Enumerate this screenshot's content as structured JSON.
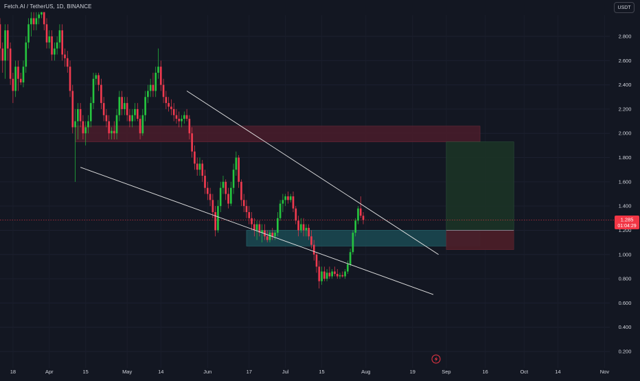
{
  "header": {
    "symbol_title": "Fetch.AI / TetherUS, 1D, BINANCE",
    "currency": "USDT"
  },
  "price_label": {
    "price": "1.285",
    "countdown": "01:04:29"
  },
  "colors": {
    "background": "#131722",
    "up": "#26c53f",
    "down": "#ef3a4f",
    "axis_text": "#d1d4dc",
    "trendline": "#e6e6e6",
    "resistance_zone": "#4a1c2a",
    "support_zone": "#1b4a52",
    "profit_zone": "#1c3326",
    "stop_zone": "#4a1e28",
    "price_line": "#f23645"
  },
  "chart_data": {
    "type": "candlestick",
    "title": "Fetch.AI / TetherUS, 1D, BINANCE",
    "y_axis": {
      "ylim": [
        0.08,
        3.0
      ],
      "ticks": [
        "2.800",
        "2.600",
        "2.400",
        "2.200",
        "2.000",
        "1.800",
        "1.600",
        "1.400",
        "1.200",
        "1.000",
        "0.800",
        "0.600",
        "0.400",
        "0.200"
      ],
      "tick_values": [
        2.8,
        2.6,
        2.4,
        2.2,
        2.0,
        1.8,
        1.6,
        1.4,
        1.2,
        1.0,
        0.8,
        0.6,
        0.4,
        0.2
      ]
    },
    "x_axis": {
      "start_date": "2024-03-13",
      "end_date": "2024-11-03",
      "ticks": [
        {
          "label": "18",
          "date": "2024-03-18"
        },
        {
          "label": "Apr",
          "date": "2024-04-01"
        },
        {
          "label": "15",
          "date": "2024-04-15"
        },
        {
          "label": "May",
          "date": "2024-05-01"
        },
        {
          "label": "14",
          "date": "2024-05-14"
        },
        {
          "label": "Jun",
          "date": "2024-06-01"
        },
        {
          "label": "17",
          "date": "2024-06-17"
        },
        {
          "label": "Jul",
          "date": "2024-07-01"
        },
        {
          "label": "15",
          "date": "2024-07-15"
        },
        {
          "label": "Aug",
          "date": "2024-08-01"
        },
        {
          "label": "19",
          "date": "2024-08-19"
        },
        {
          "label": "Sep",
          "date": "2024-09-01"
        },
        {
          "label": "16",
          "date": "2024-09-16"
        },
        {
          "label": "Oct",
          "date": "2024-10-01"
        },
        {
          "label": "14",
          "date": "2024-10-14"
        },
        {
          "label": "Nov",
          "date": "2024-11-01"
        }
      ]
    },
    "candles_start_date": "2024-03-13",
    "candles": [
      [
        2.9,
        2.95,
        2.6,
        2.7
      ],
      [
        2.7,
        2.75,
        2.5,
        2.6
      ],
      [
        2.6,
        2.9,
        2.45,
        2.85
      ],
      [
        2.85,
        2.9,
        2.6,
        2.7
      ],
      [
        2.7,
        2.75,
        2.4,
        2.45
      ],
      [
        2.45,
        2.5,
        2.25,
        2.35
      ],
      [
        2.35,
        2.6,
        2.3,
        2.55
      ],
      [
        2.55,
        2.6,
        2.35,
        2.45
      ],
      [
        2.45,
        2.5,
        2.4,
        2.42
      ],
      [
        2.42,
        2.6,
        2.38,
        2.55
      ],
      [
        2.55,
        2.8,
        2.5,
        2.75
      ],
      [
        2.75,
        2.95,
        2.7,
        2.9
      ],
      [
        2.9,
        3.0,
        2.8,
        2.95
      ],
      [
        2.95,
        3.0,
        2.85,
        2.9
      ],
      [
        2.9,
        3.0,
        2.85,
        2.95
      ],
      [
        2.95,
        3.0,
        2.9,
        2.98
      ],
      [
        2.98,
        3.0,
        2.95,
        3.0
      ],
      [
        3.0,
        3.0,
        2.85,
        2.9
      ],
      [
        2.9,
        2.95,
        2.7,
        2.75
      ],
      [
        2.75,
        2.85,
        2.7,
        2.8
      ],
      [
        2.8,
        2.85,
        2.6,
        2.65
      ],
      [
        2.65,
        2.75,
        2.6,
        2.7
      ],
      [
        2.7,
        2.8,
        2.65,
        2.75
      ],
      [
        2.75,
        2.9,
        2.7,
        2.85
      ],
      [
        2.85,
        2.9,
        2.6,
        2.65
      ],
      [
        2.65,
        2.7,
        2.55,
        2.62
      ],
      [
        2.62,
        2.68,
        2.5,
        2.55
      ],
      [
        2.55,
        2.6,
        2.3,
        2.35
      ],
      [
        2.35,
        2.4,
        2.0,
        2.05
      ],
      [
        2.05,
        2.2,
        1.6,
        2.1
      ],
      [
        2.1,
        2.25,
        1.95,
        2.2
      ],
      [
        2.2,
        2.25,
        2.05,
        2.1
      ],
      [
        2.1,
        2.15,
        1.95,
        2.0
      ],
      [
        2.0,
        2.1,
        1.9,
        2.05
      ],
      [
        2.05,
        2.15,
        2.0,
        2.1
      ],
      [
        2.1,
        2.3,
        2.05,
        2.25
      ],
      [
        2.25,
        2.5,
        2.2,
        2.45
      ],
      [
        2.45,
        2.5,
        2.4,
        2.48
      ],
      [
        2.48,
        2.5,
        2.35,
        2.4
      ],
      [
        2.4,
        2.45,
        2.2,
        2.25
      ],
      [
        2.25,
        2.3,
        2.1,
        2.15
      ],
      [
        2.15,
        2.2,
        2.05,
        2.1
      ],
      [
        2.1,
        2.15,
        1.95,
        2.0
      ],
      [
        2.0,
        2.05,
        1.95,
        2.02
      ],
      [
        2.02,
        2.1,
        1.95,
        2.0
      ],
      [
        2.0,
        2.2,
        1.95,
        2.15
      ],
      [
        2.15,
        2.35,
        2.1,
        2.3
      ],
      [
        2.3,
        2.35,
        2.15,
        2.2
      ],
      [
        2.2,
        2.3,
        2.15,
        2.25
      ],
      [
        2.25,
        2.3,
        2.1,
        2.15
      ],
      [
        2.15,
        2.2,
        2.05,
        2.1
      ],
      [
        2.1,
        2.2,
        2.05,
        2.15
      ],
      [
        2.15,
        2.25,
        2.1,
        2.2
      ],
      [
        2.2,
        2.25,
        2.1,
        2.12
      ],
      [
        2.12,
        2.15,
        1.95,
        2.0
      ],
      [
        2.0,
        2.2,
        1.98,
        2.15
      ],
      [
        2.15,
        2.35,
        2.1,
        2.3
      ],
      [
        2.3,
        2.4,
        2.25,
        2.35
      ],
      [
        2.35,
        2.45,
        2.3,
        2.4
      ],
      [
        2.4,
        2.5,
        2.3,
        2.35
      ],
      [
        2.35,
        2.55,
        2.3,
        2.5
      ],
      [
        2.5,
        2.7,
        2.45,
        2.55
      ],
      [
        2.55,
        2.6,
        2.35,
        2.4
      ],
      [
        2.4,
        2.45,
        2.25,
        2.3
      ],
      [
        2.3,
        2.35,
        2.2,
        2.25
      ],
      [
        2.25,
        2.3,
        2.18,
        2.22
      ],
      [
        2.22,
        2.28,
        2.15,
        2.2
      ],
      [
        2.2,
        2.25,
        2.1,
        2.15
      ],
      [
        2.15,
        2.2,
        2.08,
        2.12
      ],
      [
        2.12,
        2.18,
        2.05,
        2.1
      ],
      [
        2.1,
        2.15,
        2.05,
        2.12
      ],
      [
        2.12,
        2.18,
        2.08,
        2.15
      ],
      [
        2.15,
        2.2,
        2.1,
        2.12
      ],
      [
        2.12,
        2.15,
        1.95,
        2.0
      ],
      [
        2.0,
        2.05,
        1.8,
        1.85
      ],
      [
        1.85,
        1.9,
        1.7,
        1.75
      ],
      [
        1.75,
        1.8,
        1.65,
        1.7
      ],
      [
        1.7,
        1.8,
        1.65,
        1.75
      ],
      [
        1.75,
        1.78,
        1.6,
        1.65
      ],
      [
        1.65,
        1.7,
        1.5,
        1.55
      ],
      [
        1.55,
        1.6,
        1.45,
        1.5
      ],
      [
        1.5,
        1.55,
        1.4,
        1.45
      ],
      [
        1.45,
        1.5,
        1.3,
        1.35
      ],
      [
        1.35,
        1.4,
        1.15,
        1.2
      ],
      [
        1.2,
        1.45,
        1.18,
        1.4
      ],
      [
        1.4,
        1.6,
        1.35,
        1.55
      ],
      [
        1.55,
        1.65,
        1.5,
        1.6
      ],
      [
        1.6,
        1.62,
        1.45,
        1.5
      ],
      [
        1.5,
        1.55,
        1.38,
        1.42
      ],
      [
        1.42,
        1.6,
        1.4,
        1.55
      ],
      [
        1.55,
        1.75,
        1.5,
        1.7
      ],
      [
        1.7,
        1.85,
        1.65,
        1.8
      ],
      [
        1.8,
        1.82,
        1.55,
        1.6
      ],
      [
        1.6,
        1.62,
        1.4,
        1.45
      ],
      [
        1.45,
        1.5,
        1.35,
        1.4
      ],
      [
        1.4,
        1.45,
        1.3,
        1.35
      ],
      [
        1.35,
        1.4,
        1.25,
        1.3
      ],
      [
        1.3,
        1.35,
        1.2,
        1.25
      ],
      [
        1.25,
        1.3,
        1.15,
        1.2
      ],
      [
        1.2,
        1.28,
        1.12,
        1.25
      ],
      [
        1.25,
        1.28,
        1.15,
        1.18
      ],
      [
        1.18,
        1.25,
        1.1,
        1.2
      ],
      [
        1.2,
        1.25,
        1.12,
        1.15
      ],
      [
        1.15,
        1.2,
        1.1,
        1.12
      ],
      [
        1.12,
        1.2,
        1.1,
        1.18
      ],
      [
        1.18,
        1.22,
        1.12,
        1.15
      ],
      [
        1.15,
        1.2,
        1.12,
        1.18
      ],
      [
        1.18,
        1.35,
        1.15,
        1.3
      ],
      [
        1.3,
        1.45,
        1.28,
        1.42
      ],
      [
        1.42,
        1.5,
        1.35,
        1.45
      ],
      [
        1.45,
        1.5,
        1.4,
        1.48
      ],
      [
        1.48,
        1.52,
        1.42,
        1.45
      ],
      [
        1.45,
        1.5,
        1.43,
        1.48
      ],
      [
        1.48,
        1.52,
        1.35,
        1.38
      ],
      [
        1.38,
        1.4,
        1.25,
        1.28
      ],
      [
        1.28,
        1.32,
        1.15,
        1.2
      ],
      [
        1.2,
        1.3,
        1.18,
        1.25
      ],
      [
        1.25,
        1.3,
        1.15,
        1.2
      ],
      [
        1.2,
        1.25,
        1.15,
        1.22
      ],
      [
        1.22,
        1.25,
        1.12,
        1.15
      ],
      [
        1.15,
        1.2,
        1.05,
        1.08
      ],
      [
        1.08,
        1.12,
        0.95,
        1.0
      ],
      [
        1.0,
        1.02,
        0.85,
        0.9
      ],
      [
        0.9,
        0.95,
        0.72,
        0.78
      ],
      [
        0.78,
        0.9,
        0.75,
        0.86
      ],
      [
        0.86,
        0.9,
        0.78,
        0.8
      ],
      [
        0.8,
        0.88,
        0.78,
        0.85
      ],
      [
        0.85,
        0.9,
        0.8,
        0.82
      ],
      [
        0.82,
        0.88,
        0.8,
        0.86
      ],
      [
        0.86,
        0.9,
        0.82,
        0.84
      ],
      [
        0.84,
        0.88,
        0.8,
        0.82
      ],
      [
        0.82,
        0.85,
        0.8,
        0.83
      ],
      [
        0.83,
        0.86,
        0.81,
        0.82
      ],
      [
        0.82,
        0.88,
        0.8,
        0.86
      ],
      [
        0.86,
        0.95,
        0.84,
        0.92
      ],
      [
        0.92,
        1.05,
        0.9,
        1.02
      ],
      [
        1.02,
        1.2,
        1.0,
        1.18
      ],
      [
        1.18,
        1.3,
        1.15,
        1.28
      ],
      [
        1.28,
        1.4,
        1.25,
        1.38
      ],
      [
        1.38,
        1.48,
        1.3,
        1.32
      ],
      [
        1.32,
        1.35,
        1.25,
        1.285
      ]
    ],
    "support_line": {
      "from": {
        "date": "2024-04-13",
        "value": 1.72
      },
      "to": {
        "date": "2024-08-27",
        "value": 0.67
      }
    },
    "resistance_line": {
      "from": {
        "date": "2024-05-24",
        "value": 2.35
      },
      "to": {
        "date": "2024-08-29",
        "value": 1.0
      }
    },
    "resistance_zone": {
      "from_date": "2024-04-11",
      "to_date": "2024-09-14",
      "low": 1.93,
      "high": 2.06
    },
    "support_zone": {
      "from_date": "2024-06-16",
      "to_date": "2024-09-14",
      "low": 1.07,
      "high": 1.2
    },
    "position": {
      "from_date": "2024-09-01",
      "to_date": "2024-09-27",
      "entry": 1.2,
      "target": 1.93,
      "stop": 1.04
    },
    "last_price": 1.285
  }
}
